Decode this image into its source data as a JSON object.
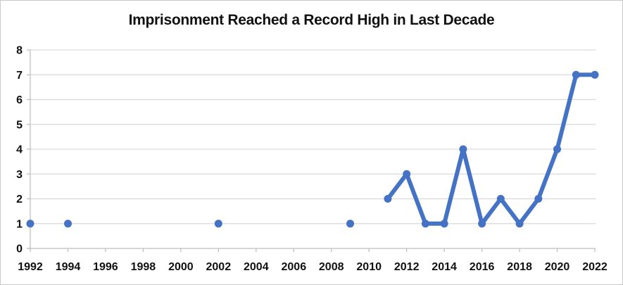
{
  "window": {
    "background": "#ffffff",
    "border_color": "#c9c9c9"
  },
  "chart_data": {
    "type": "line",
    "title": "Imprisonment Reached a Record High in Last Decade",
    "xlabel": "",
    "ylabel": "",
    "xlim": [
      1992,
      2022
    ],
    "ylim": [
      0,
      8
    ],
    "x_ticks": [
      1992,
      1994,
      1996,
      1998,
      2000,
      2002,
      2004,
      2006,
      2008,
      2010,
      2012,
      2014,
      2016,
      2018,
      2020,
      2022
    ],
    "y_ticks": [
      0,
      1,
      2,
      3,
      4,
      5,
      6,
      7,
      8
    ],
    "grid": "horizontal",
    "legend": "none",
    "gap_rule": "markers are connected only for consecutive years; isolated years render as lone dots",
    "series": [
      {
        "color": "#4472C4",
        "marker": "circle",
        "points": [
          [
            1992,
            1
          ],
          [
            1994,
            1
          ],
          [
            2002,
            1
          ],
          [
            2009,
            1
          ],
          [
            2011,
            2
          ],
          [
            2012,
            3
          ],
          [
            2013,
            1
          ],
          [
            2014,
            1
          ],
          [
            2015,
            4
          ],
          [
            2016,
            1
          ],
          [
            2017,
            2
          ],
          [
            2018,
            1
          ],
          [
            2019,
            2
          ],
          [
            2020,
            4
          ],
          [
            2021,
            7
          ],
          [
            2022,
            7
          ]
        ]
      }
    ],
    "colors": {
      "grid": "#d9d9d9",
      "axis": "#bfbfbf",
      "tick_text": "#111111",
      "title_text": "#111111"
    }
  }
}
